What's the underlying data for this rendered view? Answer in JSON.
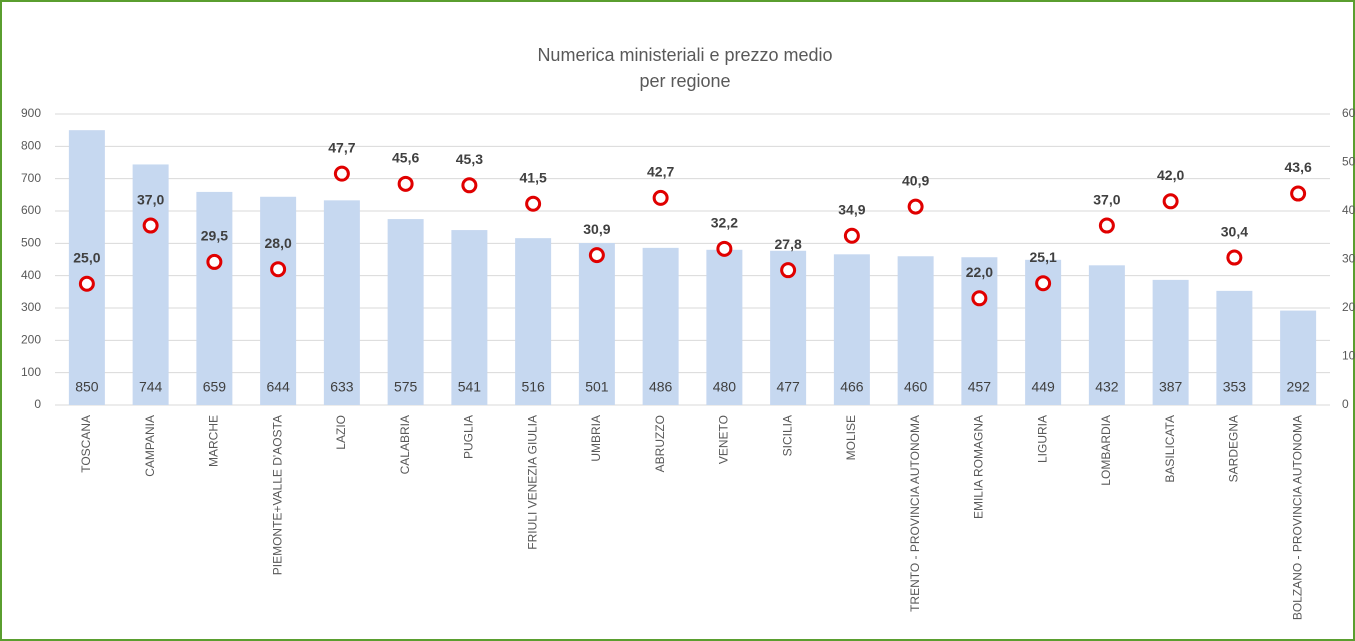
{
  "chart_data": {
    "type": "bar+scatter",
    "title": [
      "Numerica ministeriali e prezzo medio",
      "per regione"
    ],
    "categories": [
      "TOSCANA",
      "CAMPANIA",
      "MARCHE",
      "PIEMONTE+VALLE D'AOSTA",
      "LAZIO",
      "CALABRIA",
      "PUGLIA",
      "FRIULI VENEZIA GIULIA",
      "UMBRIA",
      "ABRUZZO",
      "VENETO",
      "SICILIA",
      "MOLISE",
      "TRENTO - PROVINCIA AUTONOMA",
      "EMILIA ROMAGNA",
      "LIGURIA",
      "LOMBARDIA",
      "BASILICATA",
      "SARDEGNA",
      "BOLZANO - PROVINCIA AUTONOMA"
    ],
    "series": [
      {
        "type": "bar",
        "color": "#c6d8f0",
        "values": [
          850,
          744,
          659,
          644,
          633,
          575,
          541,
          516,
          501,
          486,
          480,
          477,
          466,
          460,
          457,
          449,
          432,
          387,
          353,
          292
        ]
      },
      {
        "type": "scatter",
        "axis": "y2",
        "color": "#e00000",
        "values": [
          25.0,
          37.0,
          29.5,
          28.0,
          47.7,
          45.6,
          45.3,
          41.5,
          30.9,
          42.7,
          32.2,
          27.8,
          34.9,
          40.9,
          22.0,
          25.1,
          37.0,
          42.0,
          30.4,
          43.6
        ],
        "value_labels": [
          "25,0",
          "37,0",
          "29,5",
          "28,0",
          "47,7",
          "45,6",
          "45,3",
          "41,5",
          "30,9",
          "42,7",
          "32,2",
          "27,8",
          "34,9",
          "40,9",
          "22,0",
          "25,1",
          "37,0",
          "42,0",
          "30,4",
          "43,6"
        ]
      }
    ],
    "ylim": [
      0,
      900
    ],
    "yticks": [
      0,
      100,
      200,
      300,
      400,
      500,
      600,
      700,
      800,
      900
    ],
    "y2lim": [
      0,
      60
    ],
    "y2ticks": [
      0,
      10,
      20,
      30,
      40,
      50,
      60
    ],
    "grid": true
  }
}
